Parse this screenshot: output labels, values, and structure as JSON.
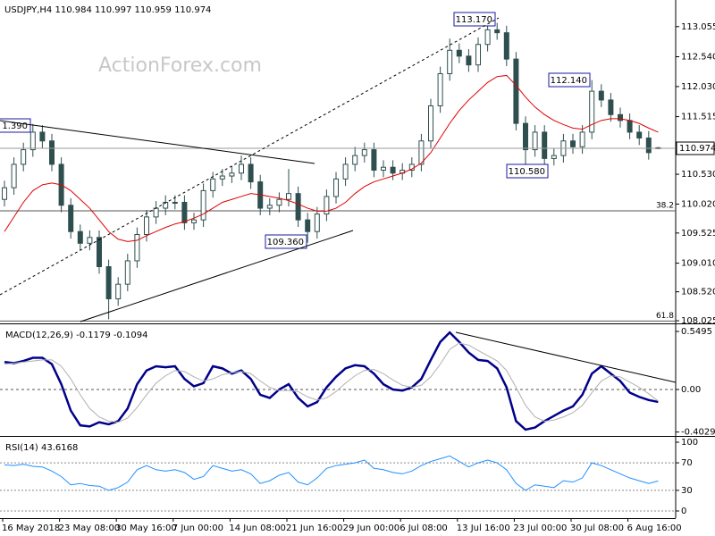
{
  "chart_data": [
    {
      "type": "candlestick",
      "title": "USDJPY,H4  110.984 110.997 110.959 110.974",
      "watermark": "ActionForex.com",
      "up_color": "#2f4f4f",
      "down_color": "#2f4f4f",
      "open": [
        110.1,
        110.3,
        110.7,
        110.95,
        111.25,
        111.1,
        110.7,
        110.0,
        109.55,
        109.35,
        109.45,
        108.95,
        108.4,
        108.65,
        109.05,
        109.5,
        109.8,
        109.95,
        110.05,
        110.05,
        109.7,
        109.75,
        110.25,
        110.45,
        110.5,
        110.55,
        110.7,
        110.4,
        109.95,
        110.0,
        110.1,
        110.2,
        109.75,
        109.55,
        109.85,
        110.15,
        110.45,
        110.7,
        110.85,
        110.95,
        110.6,
        110.65,
        110.55,
        110.6,
        110.7,
        111.1,
        111.7,
        112.25,
        112.65,
        112.55,
        112.4,
        112.75,
        113.0,
        112.95,
        112.5,
        111.4,
        110.95,
        111.25,
        110.8,
        110.85,
        111.1,
        111.0,
        111.25,
        111.95,
        111.8,
        111.55,
        111.45,
        111.25,
        111.15,
        110.984
      ],
      "high": [
        110.42,
        110.82,
        111.07,
        111.39,
        111.37,
        111.22,
        110.82,
        110.12,
        109.67,
        109.57,
        109.57,
        109.07,
        108.77,
        109.17,
        109.62,
        109.92,
        110.07,
        110.17,
        110.17,
        110.17,
        109.87,
        110.37,
        110.57,
        110.62,
        110.67,
        110.85,
        110.82,
        110.52,
        110.12,
        110.22,
        110.62,
        110.32,
        109.87,
        109.97,
        110.27,
        110.57,
        110.82,
        111.0,
        111.07,
        111.07,
        110.77,
        110.77,
        110.72,
        110.82,
        111.22,
        111.82,
        112.37,
        112.85,
        112.77,
        112.67,
        112.87,
        113.17,
        113.12,
        113.07,
        112.62,
        111.52,
        111.37,
        111.37,
        110.97,
        111.22,
        111.22,
        111.37,
        112.14,
        112.07,
        111.92,
        111.67,
        111.57,
        111.37,
        111.27,
        110.997
      ],
      "low": [
        109.98,
        110.18,
        110.58,
        110.83,
        110.98,
        110.58,
        109.88,
        109.43,
        109.23,
        109.23,
        108.83,
        108.05,
        108.28,
        108.53,
        108.93,
        109.38,
        109.68,
        109.83,
        109.93,
        109.58,
        109.58,
        109.63,
        110.13,
        110.33,
        110.38,
        110.43,
        110.28,
        109.83,
        109.83,
        109.88,
        109.98,
        109.63,
        109.36,
        109.43,
        109.73,
        110.03,
        110.33,
        110.58,
        110.73,
        110.48,
        110.48,
        110.43,
        110.43,
        110.48,
        110.58,
        110.98,
        111.58,
        112.13,
        112.43,
        112.28,
        112.28,
        112.63,
        112.83,
        112.38,
        111.28,
        110.58,
        110.83,
        110.68,
        110.68,
        110.73,
        110.88,
        110.88,
        111.13,
        111.68,
        111.43,
        111.33,
        111.13,
        111.03,
        110.78,
        110.959
      ],
      "close": [
        110.3,
        110.7,
        110.95,
        111.25,
        111.1,
        110.7,
        110.0,
        109.55,
        109.35,
        109.45,
        108.95,
        108.4,
        108.65,
        109.05,
        109.5,
        109.8,
        109.95,
        110.05,
        110.05,
        109.7,
        109.75,
        110.25,
        110.45,
        110.5,
        110.55,
        110.7,
        110.4,
        109.95,
        110.0,
        110.1,
        110.2,
        109.75,
        109.55,
        109.85,
        110.15,
        110.45,
        110.7,
        110.85,
        110.95,
        110.6,
        110.65,
        110.55,
        110.6,
        110.7,
        111.1,
        111.7,
        112.25,
        112.65,
        112.55,
        112.4,
        112.75,
        113.0,
        112.95,
        112.5,
        111.4,
        110.95,
        111.25,
        110.8,
        110.85,
        111.1,
        111.0,
        111.25,
        111.95,
        111.8,
        111.55,
        111.45,
        111.25,
        111.15,
        110.9,
        110.974
      ],
      "overlay": {
        "color": "#e00000",
        "values": [
          109.55,
          109.8,
          110.05,
          110.25,
          110.35,
          110.38,
          110.35,
          110.25,
          110.1,
          109.95,
          109.75,
          109.55,
          109.42,
          109.38,
          109.4,
          109.48,
          109.55,
          109.62,
          109.68,
          109.72,
          109.78,
          109.85,
          109.95,
          110.05,
          110.1,
          110.15,
          110.2,
          110.18,
          110.15,
          110.12,
          110.08,
          110.02,
          109.95,
          109.9,
          109.9,
          109.95,
          110.05,
          110.2,
          110.32,
          110.4,
          110.45,
          110.5,
          110.55,
          110.62,
          110.72,
          110.9,
          111.15,
          111.4,
          111.62,
          111.8,
          111.95,
          112.1,
          112.2,
          112.22,
          112.05,
          111.85,
          111.68,
          111.55,
          111.45,
          111.38,
          111.32,
          111.3,
          111.38,
          111.45,
          111.48,
          111.48,
          111.45,
          111.4,
          111.32,
          111.25
        ]
      },
      "ylim": [
        107.98,
        113.51
      ],
      "yticks": [
        {
          "value": 113.055,
          "label": "113.055"
        },
        {
          "value": 112.54,
          "label": "112.540"
        },
        {
          "value": 112.03,
          "label": "112.030"
        },
        {
          "value": 111.515,
          "label": "111.515"
        },
        {
          "value": 111.0,
          "label": "111.000"
        },
        {
          "value": 110.53,
          "label": "110.530"
        },
        {
          "value": 110.02,
          "label": "110.020"
        },
        {
          "value": 109.525,
          "label": "109.525"
        },
        {
          "value": 109.01,
          "label": "109.010"
        },
        {
          "value": 108.52,
          "label": "108.520"
        },
        {
          "value": 108.025,
          "label": "108.025"
        }
      ],
      "fib_levels": [
        {
          "label": "38.2",
          "value": 109.905
        },
        {
          "label": "61.8",
          "value": 108.02
        }
      ],
      "annotations": [
        "1.390",
        "113.170",
        "112.140",
        "110.580",
        "109.360"
      ]
    },
    {
      "type": "line",
      "title": "MACD(12,26,9) -0.1179 -0.1094",
      "series": [
        {
          "color": "#00008b",
          "values": [
            0.26,
            0.25,
            0.27,
            0.3,
            0.3,
            0.24,
            0.05,
            -0.2,
            -0.34,
            -0.35,
            -0.31,
            -0.33,
            -0.3,
            -0.18,
            0.05,
            0.18,
            0.22,
            0.21,
            0.22,
            0.1,
            0.03,
            0.06,
            0.22,
            0.2,
            0.15,
            0.18,
            0.1,
            -0.05,
            -0.08,
            0.0,
            0.05,
            -0.08,
            -0.16,
            -0.12,
            0.02,
            0.12,
            0.2,
            0.23,
            0.22,
            0.15,
            0.05,
            0.0,
            -0.01,
            0.02,
            0.1,
            0.28,
            0.45,
            0.54,
            0.45,
            0.35,
            0.28,
            0.27,
            0.2,
            0.02,
            -0.3,
            -0.38,
            -0.36,
            -0.3,
            -0.25,
            -0.2,
            -0.16,
            -0.05,
            0.15,
            0.22,
            0.15,
            0.08,
            -0.03,
            -0.07,
            -0.1,
            -0.1179
          ]
        },
        {
          "color": "#b0b0b0",
          "values": [
            0.24,
            0.25,
            0.26,
            0.27,
            0.28,
            0.28,
            0.22,
            0.1,
            -0.05,
            -0.18,
            -0.26,
            -0.3,
            -0.31,
            -0.27,
            -0.17,
            -0.05,
            0.06,
            0.13,
            0.18,
            0.17,
            0.12,
            0.08,
            0.1,
            0.14,
            0.16,
            0.17,
            0.15,
            0.08,
            0.02,
            -0.01,
            -0.01,
            -0.02,
            -0.07,
            -0.1,
            -0.08,
            -0.02,
            0.06,
            0.13,
            0.18,
            0.19,
            0.15,
            0.09,
            0.04,
            0.02,
            0.04,
            0.12,
            0.24,
            0.38,
            0.44,
            0.42,
            0.37,
            0.32,
            0.27,
            0.18,
            0.02,
            -0.15,
            -0.26,
            -0.3,
            -0.29,
            -0.26,
            -0.22,
            -0.15,
            -0.03,
            0.08,
            0.13,
            0.12,
            0.07,
            0.02,
            -0.04,
            -0.1094
          ]
        }
      ],
      "ylim": [
        -0.44,
        0.609
      ],
      "yticks": [
        0.5495,
        {
          "value": 0,
          "label": "0.00"
        },
        -0.4029
      ],
      "zero_line": true
    },
    {
      "type": "line",
      "title": "RSI(14) 43.6168",
      "series": [
        {
          "color": "#1e90ff",
          "values": [
            67,
            66,
            68,
            65,
            64,
            58,
            50,
            38,
            40,
            37,
            36,
            30,
            34,
            42,
            60,
            66,
            60,
            58,
            60,
            56,
            46,
            50,
            66,
            62,
            58,
            60,
            54,
            40,
            44,
            52,
            56,
            42,
            38,
            48,
            62,
            66,
            68,
            70,
            74,
            62,
            60,
            56,
            54,
            58,
            66,
            72,
            76,
            80,
            72,
            64,
            70,
            74,
            70,
            60,
            40,
            30,
            38,
            36,
            34,
            44,
            42,
            48,
            70,
            66,
            60,
            54,
            48,
            44,
            40,
            43.6168
          ]
        }
      ],
      "ylim": [
        -10.4,
        106.5
      ],
      "yticks": [
        0,
        30,
        70,
        100
      ],
      "grid": true,
      "categories": [
        "16 May 2018",
        null,
        null,
        null,
        null,
        null,
        "23 May 08:00",
        null,
        null,
        null,
        null,
        null,
        "30 May 16:00",
        null,
        null,
        null,
        null,
        null,
        "7 Jun 00:00",
        null,
        null,
        null,
        null,
        null,
        "14 Jun 08:00",
        null,
        null,
        null,
        null,
        null,
        "21 Jun 16:00",
        null,
        null,
        null,
        null,
        null,
        "29 Jun 00:00",
        null,
        null,
        null,
        null,
        null,
        "6 Jul 08:00",
        null,
        null,
        null,
        null,
        null,
        "13 Jul 16:00",
        null,
        null,
        null,
        null,
        null,
        "23 Jul 00:00",
        null,
        null,
        null,
        null,
        null,
        "30 Jul 08:00",
        null,
        null,
        null,
        null,
        null,
        "6 Aug 16:00",
        null,
        null,
        null
      ]
    }
  ]
}
